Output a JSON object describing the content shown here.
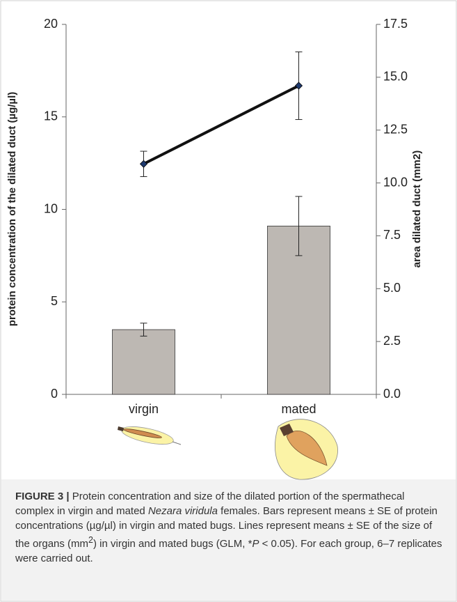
{
  "chart_data": {
    "type": "bar",
    "y_label": "protein concentration of the dilated duct (µg/µl)",
    "y2_label": "area dilated duct (mm2)",
    "categories": [
      "virgin",
      "mated"
    ],
    "ylim": [
      0,
      20
    ],
    "yticks": [
      0,
      5,
      10,
      15,
      20
    ],
    "y2lim": [
      0,
      17.5
    ],
    "y2ticks": [
      {
        "value": 0,
        "label": "0.0"
      },
      2.5,
      {
        "value": 5,
        "label": "5.0"
      },
      7.5,
      {
        "value": 10,
        "label": "10.0"
      },
      12.5,
      {
        "value": 15,
        "label": "15.0"
      },
      17.5
    ],
    "series": [
      {
        "type": "bar",
        "color": "#bdb8b3",
        "values": [
          3.5,
          9.1
        ],
        "errors": [
          0.35,
          1.6
        ]
      },
      {
        "type": "line",
        "axis": "y2",
        "color": "#111111",
        "marker_color": "#1f3a6e",
        "values": [
          10.9,
          14.6
        ],
        "errors": [
          0.6,
          1.6
        ]
      }
    ]
  },
  "caption": {
    "label": "FIGURE 3 |",
    "runs": [
      "Protein concentration and size of the dilated portion of the spermathecal complex in virgin and mated ",
      "Nezara viridula",
      " females. Bars represent means ± SE of protein concentrations (µg/µl) in virgin and mated bugs. Lines represent means ± SE of the size of the organs (mm",
      "2",
      ") in virgin and mated bugs (GLM, *",
      "P",
      " < 0.05). For each group, 6–7 replicates were carried out."
    ]
  }
}
